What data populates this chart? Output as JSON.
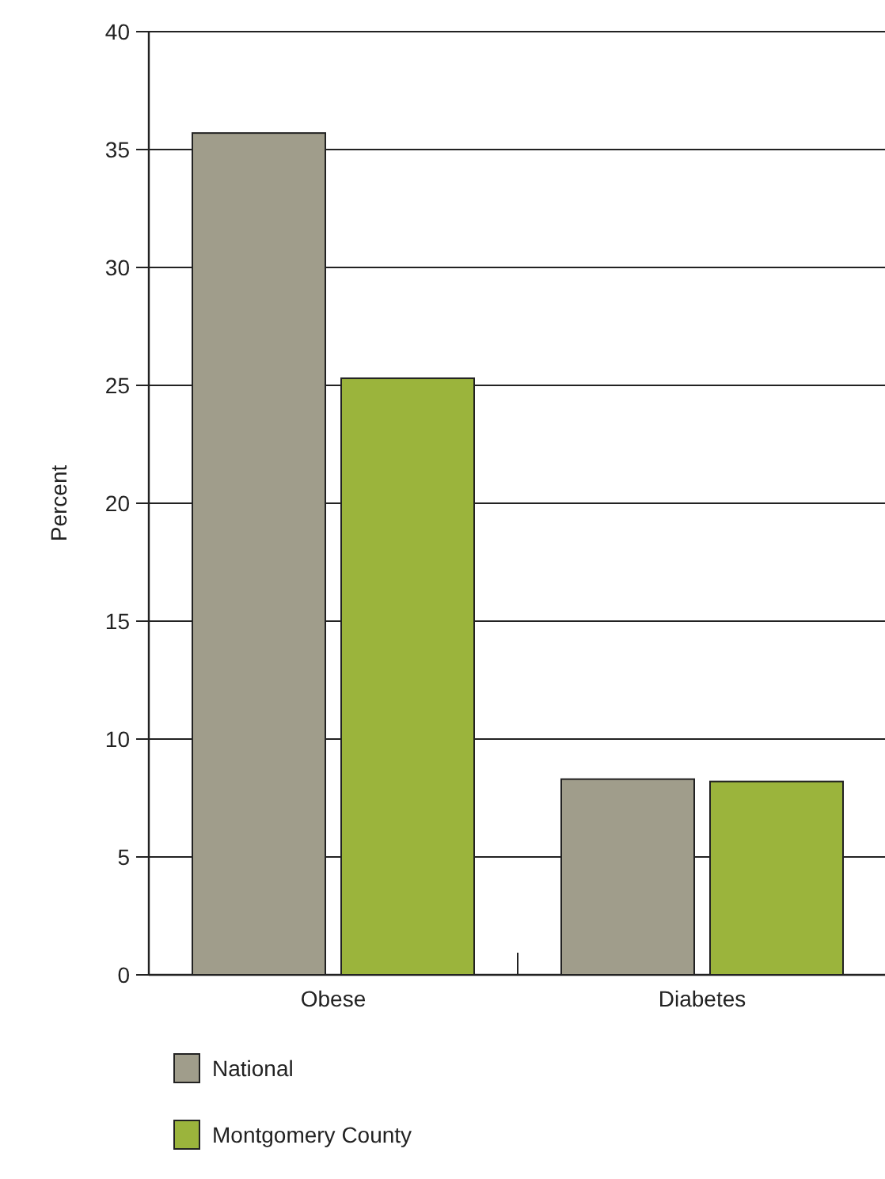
{
  "chart_data": {
    "type": "bar",
    "ylabel": "Percent",
    "categories": [
      "Obese",
      "Diabetes"
    ],
    "series": [
      {
        "name": "National",
        "color": "#a09d8b",
        "values": [
          35.7,
          8.3
        ]
      },
      {
        "name": "Montgomery County",
        "color": "#9bb43c",
        "values": [
          25.3,
          8.2
        ]
      }
    ],
    "ylim": [
      0,
      40
    ],
    "yticks": [
      0,
      5,
      10,
      15,
      20,
      25,
      30,
      35,
      40
    ],
    "grid": "y",
    "legend": "bottom left"
  }
}
